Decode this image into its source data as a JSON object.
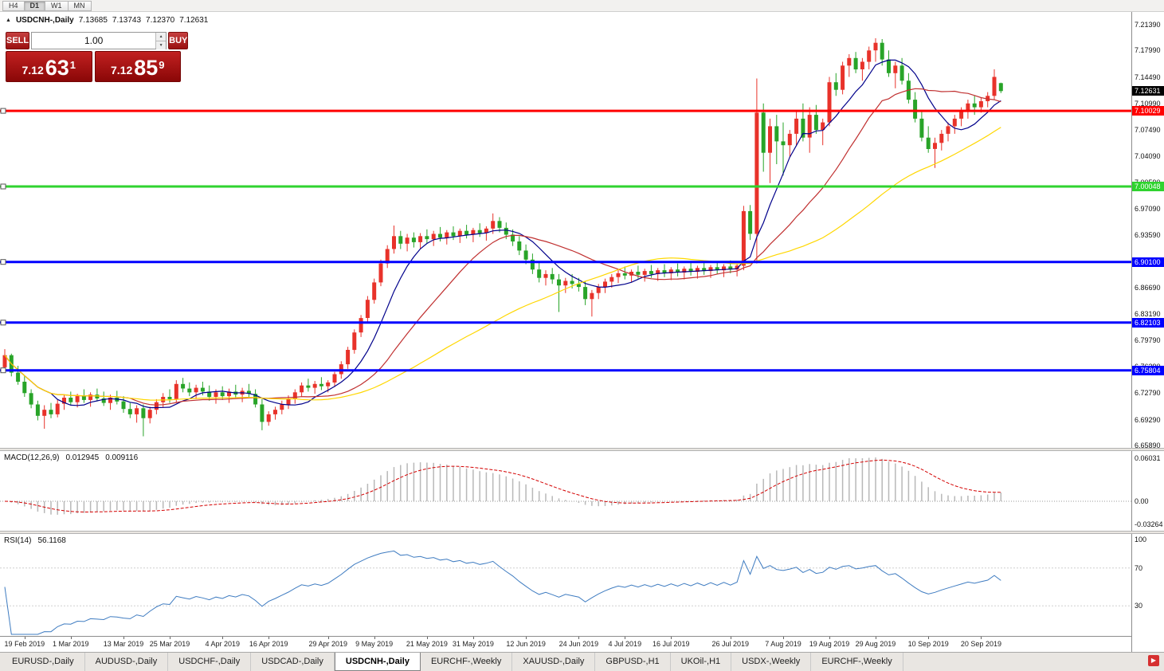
{
  "icons": {
    "collapse": "▲",
    "spin_up": "▲",
    "spin_down": "▼",
    "tab_scroll": "▶"
  },
  "toolbar": {
    "timeframes": [
      {
        "label": "H4",
        "active": false
      },
      {
        "label": "D1",
        "active": true
      },
      {
        "label": "W1",
        "active": false
      },
      {
        "label": "MN",
        "active": false
      }
    ]
  },
  "chart_header": {
    "symbol": "USDCNH-,Daily",
    "open": "7.13685",
    "high": "7.13743",
    "low": "7.12370",
    "close": "7.12631"
  },
  "trade_panel": {
    "sell_label": "SELL",
    "buy_label": "BUY",
    "volume": "1.00",
    "sell_price": {
      "big": "7.12",
      "pips": "63",
      "pipette": "1"
    },
    "buy_price": {
      "big": "7.12",
      "pips": "85",
      "pipette": "9"
    }
  },
  "indicators": {
    "macd": {
      "title": "MACD(12,26,9)",
      "main_value": "0.012945",
      "signal_value": "0.009116"
    },
    "rsi": {
      "title": "RSI(14)",
      "value": "56.1168"
    }
  },
  "tabs": [
    {
      "label": "EURUSD-,Daily",
      "active": false
    },
    {
      "label": "AUDUSD-,Daily",
      "active": false
    },
    {
      "label": "USDCHF-,Daily",
      "active": false
    },
    {
      "label": "USDCAD-,Daily",
      "active": false
    },
    {
      "label": "USDCNH-,Daily",
      "active": true
    },
    {
      "label": "EURCHF-,Weekly",
      "active": false
    },
    {
      "label": "XAUUSD-,Daily",
      "active": false
    },
    {
      "label": "GBPUSD-,H1",
      "active": false
    },
    {
      "label": "UKOil-,H1",
      "active": false
    },
    {
      "label": "USDX-,Weekly",
      "active": false
    },
    {
      "label": "EURCHF-,Weekly",
      "active": false
    }
  ],
  "chart_data": {
    "type": "candlestick",
    "symbol": "USDCNH",
    "timeframe": "Daily",
    "up_color": "#E8322A",
    "down_color": "#28A428",
    "current_price_label": "7.12631",
    "price_range": {
      "top": 7.2139,
      "bottom": 6.6589
    },
    "y_axis_labels": [
      "7.21390",
      "7.17990",
      "7.14490",
      "7.10990",
      "7.07490",
      "7.04090",
      "7.00590",
      "6.97090",
      "6.93590",
      "6.90190",
      "6.86690",
      "6.83190",
      "6.79790",
      "6.76290",
      "6.72790",
      "6.69290",
      "6.65890"
    ],
    "h_lines": [
      {
        "price": 7.10029,
        "color": "#FF0000",
        "width": 3
      },
      {
        "price": 7.00048,
        "color": "#2FD32F",
        "width": 3
      },
      {
        "price": 6.901,
        "color": "#0000FF",
        "width": 3
      },
      {
        "price": 6.82103,
        "color": "#0000FF",
        "width": 3
      },
      {
        "price": 6.75804,
        "color": "#0000FF",
        "width": 3
      }
    ],
    "moving_averages": [
      {
        "period": 8,
        "color": "#00008B"
      },
      {
        "period": 20,
        "color": "#C03030"
      },
      {
        "period": 45,
        "color": "#FFD700"
      }
    ],
    "macd": {
      "params": "12,26,9",
      "axis_labels": [
        "0.06031",
        "0.00",
        "-0.03264"
      ],
      "histogram_color": "#B8B8B8",
      "signal_color": "#D40000"
    },
    "rsi": {
      "period": 14,
      "levels": [
        100,
        70,
        30
      ],
      "color": "#3F7CC1"
    },
    "x_labels": [
      {
        "i": 3,
        "t": "19 Feb 2019"
      },
      {
        "i": 10,
        "t": "1 Mar 2019"
      },
      {
        "i": 18,
        "t": "13 Mar 2019"
      },
      {
        "i": 25,
        "t": "25 Mar 2019"
      },
      {
        "i": 33,
        "t": "4 Apr 2019"
      },
      {
        "i": 40,
        "t": "16 Apr 2019"
      },
      {
        "i": 49,
        "t": "29 Apr 2019"
      },
      {
        "i": 56,
        "t": "9 May 2019"
      },
      {
        "i": 64,
        "t": "21 May 2019"
      },
      {
        "i": 71,
        "t": "31 May 2019"
      },
      {
        "i": 79,
        "t": "12 Jun 2019"
      },
      {
        "i": 87,
        "t": "24 Jun 2019"
      },
      {
        "i": 94,
        "t": "4 Jul 2019"
      },
      {
        "i": 101,
        "t": "16 Jul 2019"
      },
      {
        "i": 110,
        "t": "26 Jul 2019"
      },
      {
        "i": 118,
        "t": "7 Aug 2019"
      },
      {
        "i": 125,
        "t": "19 Aug 2019"
      },
      {
        "i": 132,
        "t": "29 Aug 2019"
      },
      {
        "i": 140,
        "t": "10 Sep 2019"
      },
      {
        "i": 148,
        "t": "20 Sep 2019"
      }
    ],
    "candles": [
      [
        6.762,
        6.786,
        6.758,
        6.778
      ],
      [
        6.778,
        6.78,
        6.75,
        6.755
      ],
      [
        6.755,
        6.764,
        6.739,
        6.743
      ],
      [
        6.743,
        6.75,
        6.723,
        6.728
      ],
      [
        6.728,
        6.733,
        6.708,
        6.713
      ],
      [
        6.713,
        6.718,
        6.692,
        6.698
      ],
      [
        6.698,
        6.712,
        6.681,
        6.706
      ],
      [
        6.706,
        6.715,
        6.695,
        6.7
      ],
      [
        6.7,
        6.719,
        6.696,
        6.714
      ],
      [
        6.714,
        6.726,
        6.706,
        6.722
      ],
      [
        6.722,
        6.73,
        6.712,
        6.716
      ],
      [
        6.716,
        6.727,
        6.709,
        6.724
      ],
      [
        6.724,
        6.733,
        6.715,
        6.719
      ],
      [
        6.719,
        6.729,
        6.71,
        6.726
      ],
      [
        6.726,
        6.734,
        6.717,
        6.721
      ],
      [
        6.721,
        6.73,
        6.711,
        6.715
      ],
      [
        6.715,
        6.726,
        6.706,
        6.722
      ],
      [
        6.722,
        6.731,
        6.713,
        6.717
      ],
      [
        6.717,
        6.724,
        6.702,
        6.707
      ],
      [
        6.707,
        6.715,
        6.695,
        6.7
      ],
      [
        6.7,
        6.712,
        6.689,
        6.708
      ],
      [
        6.708,
        6.713,
        6.671,
        6.695
      ],
      [
        6.695,
        6.71,
        6.688,
        6.706
      ],
      [
        6.706,
        6.72,
        6.7,
        6.716
      ],
      [
        6.716,
        6.728,
        6.709,
        6.723
      ],
      [
        6.723,
        6.733,
        6.715,
        6.72
      ],
      [
        6.72,
        6.745,
        6.715,
        6.74
      ],
      [
        6.74,
        6.748,
        6.729,
        6.734
      ],
      [
        6.734,
        6.742,
        6.724,
        6.729
      ],
      [
        6.729,
        6.739,
        6.72,
        6.735
      ],
      [
        6.735,
        6.743,
        6.725,
        6.73
      ],
      [
        6.73,
        6.738,
        6.718,
        6.723
      ],
      [
        6.723,
        6.733,
        6.714,
        6.729
      ],
      [
        6.729,
        6.737,
        6.719,
        6.724
      ],
      [
        6.724,
        6.734,
        6.715,
        6.73
      ],
      [
        6.73,
        6.739,
        6.721,
        6.726
      ],
      [
        6.726,
        6.735,
        6.716,
        6.731
      ],
      [
        6.731,
        6.74,
        6.722,
        6.727
      ],
      [
        6.727,
        6.733,
        6.709,
        6.713
      ],
      [
        6.713,
        6.72,
        6.679,
        6.69
      ],
      [
        6.69,
        6.704,
        6.685,
        6.7
      ],
      [
        6.7,
        6.71,
        6.693,
        6.706
      ],
      [
        6.706,
        6.718,
        6.7,
        6.713
      ],
      [
        6.713,
        6.725,
        6.707,
        6.72
      ],
      [
        6.72,
        6.733,
        6.714,
        6.729
      ],
      [
        6.729,
        6.742,
        6.723,
        6.738
      ],
      [
        6.738,
        6.747,
        6.73,
        6.735
      ],
      [
        6.735,
        6.744,
        6.727,
        6.74
      ],
      [
        6.74,
        6.749,
        6.732,
        6.737
      ],
      [
        6.737,
        6.745,
        6.729,
        6.742
      ],
      [
        6.742,
        6.756,
        6.736,
        6.753
      ],
      [
        6.753,
        6.77,
        6.747,
        6.766
      ],
      [
        6.766,
        6.789,
        6.76,
        6.785
      ],
      [
        6.785,
        6.812,
        6.78,
        6.808
      ],
      [
        6.808,
        6.831,
        6.802,
        6.827
      ],
      [
        6.827,
        6.856,
        6.821,
        6.851
      ],
      [
        6.851,
        6.879,
        6.846,
        6.874
      ],
      [
        6.874,
        6.904,
        6.869,
        6.899
      ],
      [
        6.899,
        6.923,
        6.893,
        6.918
      ],
      [
        6.918,
        6.949,
        6.912,
        6.935
      ],
      [
        6.935,
        6.942,
        6.918,
        6.925
      ],
      [
        6.925,
        6.938,
        6.915,
        6.933
      ],
      [
        6.933,
        6.94,
        6.92,
        6.927
      ],
      [
        6.927,
        6.939,
        6.918,
        6.935
      ],
      [
        6.935,
        6.944,
        6.925,
        6.931
      ],
      [
        6.931,
        6.942,
        6.922,
        6.938
      ],
      [
        6.938,
        6.947,
        6.928,
        6.933
      ],
      [
        6.933,
        6.943,
        6.924,
        6.94
      ],
      [
        6.94,
        6.948,
        6.93,
        6.935
      ],
      [
        6.935,
        6.945,
        6.926,
        6.942
      ],
      [
        6.942,
        6.95,
        6.932,
        6.937
      ],
      [
        6.937,
        6.946,
        6.927,
        6.943
      ],
      [
        6.943,
        6.952,
        6.934,
        6.939
      ],
      [
        6.939,
        6.948,
        6.929,
        6.945
      ],
      [
        6.945,
        6.965,
        6.938,
        6.955
      ],
      [
        6.955,
        6.96,
        6.94,
        6.946
      ],
      [
        6.946,
        6.953,
        6.931,
        6.937
      ],
      [
        6.937,
        6.944,
        6.922,
        6.928
      ],
      [
        6.928,
        6.935,
        6.91,
        6.916
      ],
      [
        6.916,
        6.924,
        6.898,
        6.904
      ],
      [
        6.904,
        6.912,
        6.885,
        6.891
      ],
      [
        6.891,
        6.9,
        6.874,
        6.88
      ],
      [
        6.88,
        6.89,
        6.87,
        6.885
      ],
      [
        6.885,
        6.893,
        6.872,
        6.878
      ],
      [
        6.878,
        6.885,
        6.835,
        6.87
      ],
      [
        6.87,
        6.88,
        6.86,
        6.876
      ],
      [
        6.876,
        6.885,
        6.866,
        6.872
      ],
      [
        6.872,
        6.88,
        6.862,
        6.868
      ],
      [
        6.868,
        6.876,
        6.844,
        6.852
      ],
      [
        6.852,
        6.864,
        6.829,
        6.86
      ],
      [
        6.86,
        6.872,
        6.852,
        6.868
      ],
      [
        6.868,
        6.879,
        6.86,
        6.875
      ],
      [
        6.875,
        6.885,
        6.867,
        6.881
      ],
      [
        6.881,
        6.89,
        6.873,
        6.886
      ],
      [
        6.886,
        6.895,
        6.878,
        6.883
      ],
      [
        6.883,
        6.891,
        6.874,
        6.888
      ],
      [
        6.888,
        6.896,
        6.879,
        6.884
      ],
      [
        6.884,
        6.892,
        6.875,
        6.889
      ],
      [
        6.889,
        6.897,
        6.88,
        6.885
      ],
      [
        6.885,
        6.893,
        6.876,
        6.89
      ],
      [
        6.89,
        6.898,
        6.881,
        6.886
      ],
      [
        6.886,
        6.894,
        6.877,
        6.891
      ],
      [
        6.891,
        6.899,
        6.882,
        6.887
      ],
      [
        6.887,
        6.895,
        6.878,
        6.892
      ],
      [
        6.892,
        6.9,
        6.883,
        6.888
      ],
      [
        6.888,
        6.896,
        6.879,
        6.893
      ],
      [
        6.893,
        6.901,
        6.884,
        6.889
      ],
      [
        6.889,
        6.897,
        6.88,
        6.894
      ],
      [
        6.894,
        6.902,
        6.885,
        6.89
      ],
      [
        6.89,
        6.898,
        6.881,
        6.895
      ],
      [
        6.895,
        6.903,
        6.886,
        6.891
      ],
      [
        6.891,
        6.899,
        6.882,
        6.896
      ],
      [
        6.896,
        6.975,
        6.89,
        6.968
      ],
      [
        6.968,
        6.976,
        6.93,
        6.938
      ],
      [
        6.938,
        7.143,
        6.899,
        7.098
      ],
      [
        7.098,
        7.11,
        7.02,
        7.045
      ],
      [
        7.045,
        7.09,
        7.005,
        7.08
      ],
      [
        7.08,
        7.095,
        7.03,
        7.06
      ],
      [
        7.06,
        7.085,
        7.015,
        7.055
      ],
      [
        7.055,
        7.075,
        7.04,
        7.07
      ],
      [
        7.07,
        7.1,
        7.055,
        7.09
      ],
      [
        7.09,
        7.11,
        7.06,
        7.065
      ],
      [
        7.065,
        7.105,
        7.045,
        7.095
      ],
      [
        7.095,
        7.108,
        7.07,
        7.075
      ],
      [
        7.075,
        7.09,
        7.055,
        7.085
      ],
      [
        7.085,
        7.145,
        7.08,
        7.138
      ],
      [
        7.138,
        7.15,
        7.12,
        7.128
      ],
      [
        7.128,
        7.165,
        7.122,
        7.16
      ],
      [
        7.16,
        7.175,
        7.145,
        7.17
      ],
      [
        7.17,
        7.178,
        7.15,
        7.155
      ],
      [
        7.155,
        7.17,
        7.14,
        7.165
      ],
      [
        7.165,
        7.185,
        7.155,
        7.18
      ],
      [
        7.18,
        7.196,
        7.165,
        7.19
      ],
      [
        7.19,
        7.195,
        7.16,
        7.168
      ],
      [
        7.168,
        7.18,
        7.145,
        7.15
      ],
      [
        7.15,
        7.165,
        7.13,
        7.16
      ],
      [
        7.16,
        7.17,
        7.135,
        7.14
      ],
      [
        7.14,
        7.15,
        7.11,
        7.115
      ],
      [
        7.115,
        7.125,
        7.085,
        7.09
      ],
      [
        7.09,
        7.1,
        7.06,
        7.065
      ],
      [
        7.065,
        7.08,
        7.045,
        7.05
      ],
      [
        7.05,
        7.065,
        7.025,
        7.058
      ],
      [
        7.058,
        7.075,
        7.048,
        7.07
      ],
      [
        7.07,
        7.085,
        7.06,
        7.08
      ],
      [
        7.08,
        7.095,
        7.07,
        7.09
      ],
      [
        7.09,
        7.105,
        7.08,
        7.1
      ],
      [
        7.1,
        7.115,
        7.09,
        7.11
      ],
      [
        7.11,
        7.12,
        7.095,
        7.105
      ],
      [
        7.105,
        7.118,
        7.098,
        7.113
      ],
      [
        7.113,
        7.125,
        7.105,
        7.12
      ],
      [
        7.12,
        7.155,
        7.115,
        7.145
      ],
      [
        7.13685,
        7.13743,
        7.1237,
        7.12631
      ]
    ]
  }
}
